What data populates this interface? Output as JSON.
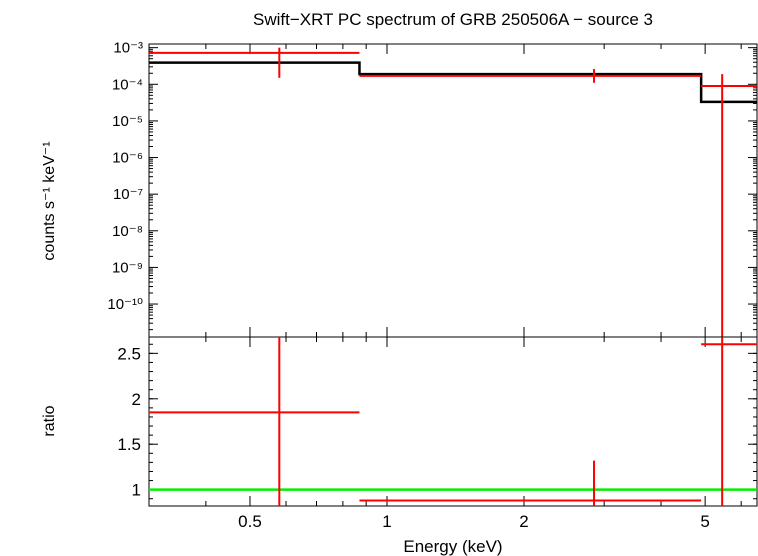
{
  "chart_data": {
    "type": "line",
    "title": "Swift−XRT PC spectrum of GRB 250506A − source 3",
    "xlabel": "Energy (keV)",
    "x_scale": "log",
    "xlim": [
      0.3,
      6.5
    ],
    "x_ticks": [
      {
        "value": 0.5,
        "label": "0.5"
      },
      {
        "value": 1,
        "label": "1"
      },
      {
        "value": 2,
        "label": "2"
      },
      {
        "value": 5,
        "label": "5"
      }
    ],
    "top_panel": {
      "ylabel": "counts s⁻¹ keV⁻¹",
      "y_scale": "log",
      "ylim_exp": [
        -10.9,
        -2.9
      ],
      "y_ticks": [
        {
          "exp": -3,
          "label": "10⁻³"
        },
        {
          "exp": -4,
          "label": "10⁻⁴"
        },
        {
          "exp": -5,
          "label": "10⁻⁵"
        },
        {
          "exp": -6,
          "label": "10⁻⁶"
        },
        {
          "exp": -7,
          "label": "10⁻⁷"
        },
        {
          "exp": -8,
          "label": "10⁻⁸"
        },
        {
          "exp": -9,
          "label": "10⁻⁹"
        },
        {
          "exp": -10,
          "label": "10⁻¹⁰"
        }
      ],
      "data": [
        {
          "x": 0.58,
          "xlo": 0.3,
          "xhi": 0.87,
          "y": 0.00072,
          "ylo": 0.00015,
          "yhi": 0.001
        },
        {
          "x": 2.85,
          "xlo": 0.87,
          "xhi": 4.9,
          "y": 0.00017,
          "ylo": 0.00011,
          "yhi": 0.00026
        },
        {
          "x": 5.45,
          "xlo": 4.9,
          "xhi": 6.5,
          "y": 9e-05,
          "ylo": 1e-11,
          "yhi": 0.00019
        }
      ],
      "model_steps": [
        {
          "xlo": 0.3,
          "xhi": 0.87,
          "y": 0.00039
        },
        {
          "xlo": 0.87,
          "xhi": 4.9,
          "y": 0.00019
        },
        {
          "xlo": 4.9,
          "xhi": 6.5,
          "y": 3.3e-05
        }
      ]
    },
    "bottom_panel": {
      "ylabel": "ratio",
      "ylim": [
        0.82,
        2.68
      ],
      "y_ticks": [
        {
          "value": 1,
          "label": "1"
        },
        {
          "value": 1.5,
          "label": "1.5"
        },
        {
          "value": 2,
          "label": "2"
        },
        {
          "value": 2.5,
          "label": "2.5"
        }
      ],
      "reference_line": 1,
      "data": [
        {
          "x": 0.58,
          "xlo": 0.3,
          "xhi": 0.87,
          "y": 1.85,
          "ylo": 0.82,
          "yhi": 2.68
        },
        {
          "x": 2.85,
          "xlo": 0.87,
          "xhi": 4.9,
          "y": 0.88,
          "ylo": 0.82,
          "yhi": 1.32
        },
        {
          "x": 5.45,
          "xlo": 4.9,
          "xhi": 6.5,
          "y": 2.6,
          "ylo": 0.82,
          "yhi": 2.68
        }
      ]
    },
    "colors": {
      "data": "#ff0000",
      "model": "#000000",
      "ratio_line": "#00ee00",
      "axes": "#000000"
    }
  }
}
